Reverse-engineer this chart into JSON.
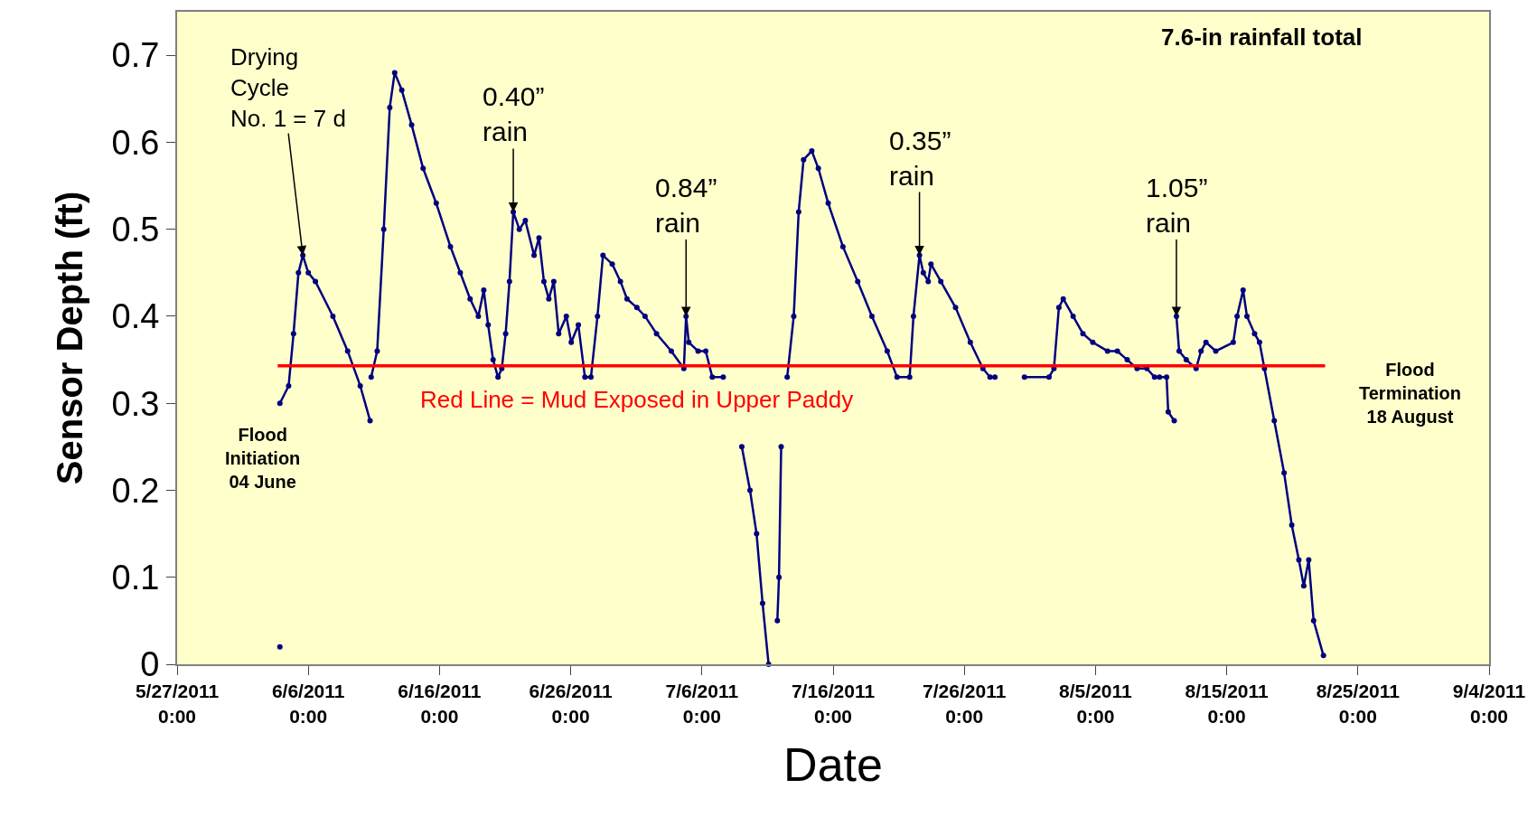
{
  "chart_data": {
    "type": "line",
    "xlabel": "Date",
    "ylabel": "Sensor Depth (ft)",
    "xlim": [
      "2011-05-27",
      "2011-09-04"
    ],
    "xticks": [
      {
        "value": "2011-05-27",
        "label": "5/27/2011\n0:00"
      },
      {
        "value": "2011-06-06",
        "label": "6/6/2011\n0:00"
      },
      {
        "value": "2011-06-16",
        "label": "6/16/2011\n0:00"
      },
      {
        "value": "2011-06-26",
        "label": "6/26/2011\n0:00"
      },
      {
        "value": "2011-07-06",
        "label": "7/6/2011\n0:00"
      },
      {
        "value": "2011-07-16",
        "label": "7/16/2011\n0:00"
      },
      {
        "value": "2011-07-26",
        "label": "7/26/2011\n0:00"
      },
      {
        "value": "2011-08-05",
        "label": "8/5/2011\n0:00"
      },
      {
        "value": "2011-08-15",
        "label": "8/15/2011\n0:00"
      },
      {
        "value": "2011-08-25",
        "label": "8/25/2011\n0:00"
      },
      {
        "value": "2011-09-04",
        "label": "9/4/2011\n0:00"
      }
    ],
    "ylim": [
      0,
      0.75
    ],
    "yticks": [
      0,
      0.1,
      0.2,
      0.3,
      0.4,
      0.5,
      0.6,
      0.7
    ],
    "grid": false,
    "marker": "circle",
    "series": [
      {
        "color": "#000080",
        "x": [
          "2011-06-03T20:00",
          "2011-06-04T12:00",
          "2011-06-04T21:00",
          "2011-06-05T06:00",
          "2011-06-05T14:00",
          "2011-06-06T00:00",
          "2011-06-06T13:00",
          "2011-06-07T21:00",
          "2011-06-09T00:00",
          "2011-06-09T23:00",
          "2011-06-10T17:00",
          "2011-06-10T18:00",
          "2011-06-10T19:00",
          "2011-06-11T06:00",
          "2011-06-11T18:00",
          "2011-06-12T05:00",
          "2011-06-12T14:00",
          "2011-06-13T03:00",
          "2011-06-13T21:00",
          "2011-06-14T18:00",
          "2011-06-15T18:00",
          "2011-06-16T20:00",
          "2011-06-17T14:00",
          "2011-06-18T08:00",
          "2011-06-18T23:00",
          "2011-06-19T09:00",
          "2011-06-19T17:00",
          "2011-06-20T02:00",
          "2011-06-20T11:00",
          "2011-06-20T18:00",
          "2011-06-21T01:00",
          "2011-06-21T08:00",
          "2011-06-21T15:00",
          "2011-06-22T02:00",
          "2011-06-22T13:00",
          "2011-06-23T05:00",
          "2011-06-23T14:00",
          "2011-06-23T23:00",
          "2011-06-24T08:00",
          "2011-06-24T17:00",
          "2011-06-25T02:00",
          "2011-06-25T16:00",
          "2011-06-26T01:00",
          "2011-06-26T14:00",
          "2011-06-27T02:00",
          "2011-06-27T13:00",
          "2011-06-28T01:00",
          "2011-06-28T11:00",
          "2011-06-29T04:00",
          "2011-06-29T19:00",
          "2011-06-30T07:00",
          "2011-07-01T01:00",
          "2011-07-01T16:00",
          "2011-07-02T13:00",
          "2011-07-03T16:00",
          "2011-07-04T15:00",
          "2011-07-04T19:00",
          "2011-07-05T00:00",
          "2011-07-05T17:00",
          "2011-07-06T07:00",
          "2011-07-06T19:00",
          "2011-07-07T15:00",
          "2011-07-08T08:00",
          "2011-07-09T01:00",
          "2011-07-09T16:00",
          "2011-07-10T04:00",
          "2011-07-10T15:00",
          "2011-07-11T02:00",
          "2011-07-11T10:00",
          "2011-07-11T18:00",
          "2011-07-11T21:00",
          "2011-07-12T01:00",
          "2011-07-12T06:00",
          "2011-07-12T12:00",
          "2011-07-13T00:00",
          "2011-07-13T09:00",
          "2011-07-13T18:00",
          "2011-07-14T09:00",
          "2011-07-14T21:00",
          "2011-07-15T15:00",
          "2011-07-16T18:00",
          "2011-07-17T21:00",
          "2011-07-18T23:00",
          "2011-07-20T03:00",
          "2011-07-20T21:00",
          "2011-07-21T20:00",
          "2011-07-22T03:00",
          "2011-07-22T14:00",
          "2011-07-22T21:00",
          "2011-07-23T06:00",
          "2011-07-23T11:00",
          "2011-07-24T05:00",
          "2011-07-25T08:00",
          "2011-07-26T11:00",
          "2011-07-27T10:00",
          "2011-07-27T23:00",
          "2011-07-28T08:00",
          "2011-07-29T12:00",
          "2011-07-30T14:00",
          "2011-08-01T11:00",
          "2011-08-01T20:00",
          "2011-08-02T05:00",
          "2011-08-02T13:00",
          "2011-08-03T07:00",
          "2011-08-04T01:00",
          "2011-08-04T19:00",
          "2011-08-05T22:00",
          "2011-08-06T16:00",
          "2011-08-07T10:00",
          "2011-08-08T04:00",
          "2011-08-08T22:00",
          "2011-08-09T12:00",
          "2011-08-09T21:00",
          "2011-08-10T10:00",
          "2011-08-10T13:00",
          "2011-08-11T00:00",
          "2011-08-11T02:00",
          "2011-08-11T04:00",
          "2011-08-11T09:00",
          "2011-08-11T22:00",
          "2011-08-12T16:00",
          "2011-08-13T01:00",
          "2011-08-13T10:00",
          "2011-08-14T04:00",
          "2011-08-15T12:00",
          "2011-08-15T19:00",
          "2011-08-16T06:00",
          "2011-08-16T13:00",
          "2011-08-17T03:00",
          "2011-08-17T12:00",
          "2011-08-17T21:00",
          "2011-08-18T15:00",
          "2011-08-19T09:00",
          "2011-08-19T23:00",
          "2011-08-20T12:00",
          "2011-08-20T21:00",
          "2011-08-21T06:00",
          "2011-08-21T15:00",
          "2011-08-22T09:00"
        ],
        "values": [
          0.3,
          0.32,
          0.38,
          0.45,
          0.47,
          0.45,
          0.44,
          0.4,
          0.36,
          0.32,
          0.28,
          null,
          0.33,
          0.36,
          0.5,
          0.64,
          0.68,
          0.66,
          0.62,
          0.57,
          0.53,
          0.48,
          0.45,
          0.42,
          0.4,
          0.43,
          0.39,
          0.35,
          0.33,
          0.34,
          0.38,
          0.44,
          0.52,
          0.5,
          0.51,
          0.47,
          0.49,
          0.44,
          0.42,
          0.44,
          0.38,
          0.4,
          0.37,
          0.39,
          0.33,
          0.33,
          0.4,
          0.47,
          0.46,
          0.44,
          0.42,
          0.41,
          0.4,
          0.38,
          0.36,
          0.34,
          0.4,
          0.37,
          0.36,
          0.36,
          0.33,
          0.33,
          null,
          0.25,
          0.2,
          0.15,
          0.07,
          0.0,
          null,
          0.05,
          0.1,
          0.25,
          null,
          0.33,
          0.4,
          0.52,
          0.58,
          0.59,
          0.57,
          0.53,
          0.48,
          0.44,
          0.4,
          0.36,
          0.33,
          0.33,
          0.4,
          0.47,
          0.45,
          0.44,
          0.46,
          0.44,
          0.41,
          0.37,
          0.34,
          0.33,
          0.33,
          null,
          0.33,
          0.33,
          0.34,
          0.41,
          0.42,
          0.4,
          0.38,
          0.37,
          0.36,
          0.36,
          0.35,
          0.34,
          0.34,
          0.33,
          0.33,
          0.33,
          0.29,
          0.28,
          null,
          0.4,
          0.36,
          0.35,
          0.34,
          0.36,
          0.37,
          0.36,
          0.37,
          0.4,
          0.43,
          0.4,
          0.38,
          0.37,
          0.34,
          0.28,
          0.22,
          0.16,
          0.12,
          0.09,
          0.12,
          0.05,
          0.01
        ]
      },
      {
        "type": "scatter",
        "color": "#000080",
        "x": [
          "2011-06-03T20:00"
        ],
        "values": [
          0.02
        ]
      },
      {
        "type": "line",
        "color": "#ff0000",
        "marker": "none",
        "x": [
          "2011-06-03T16:00",
          "2011-08-22T12:00"
        ],
        "values": [
          0.343,
          0.343
        ]
      }
    ],
    "annotations": [
      {
        "text": "Drying\nCycle\nNo. 1 = 7 d",
        "x": "2011-06-05T14:00",
        "y": 0.47
      },
      {
        "text": "0.40”\nrain",
        "x": "2011-06-21T15:00",
        "y": 0.52
      },
      {
        "text": "0.84”\nrain",
        "x": "2011-07-04T19:00",
        "y": 0.4
      },
      {
        "text": "0.35”\nrain",
        "x": "2011-07-22T14:00",
        "y": 0.47
      },
      {
        "text": "1.05”\nrain",
        "x": "2011-08-11T04:00",
        "y": 0.4
      },
      "7.6-in rainfall total",
      "Red Line = Mud Exposed in Upper Paddy",
      "Flood\nInitiation\n04 June",
      "Flood\nTermination\n18 August"
    ]
  }
}
